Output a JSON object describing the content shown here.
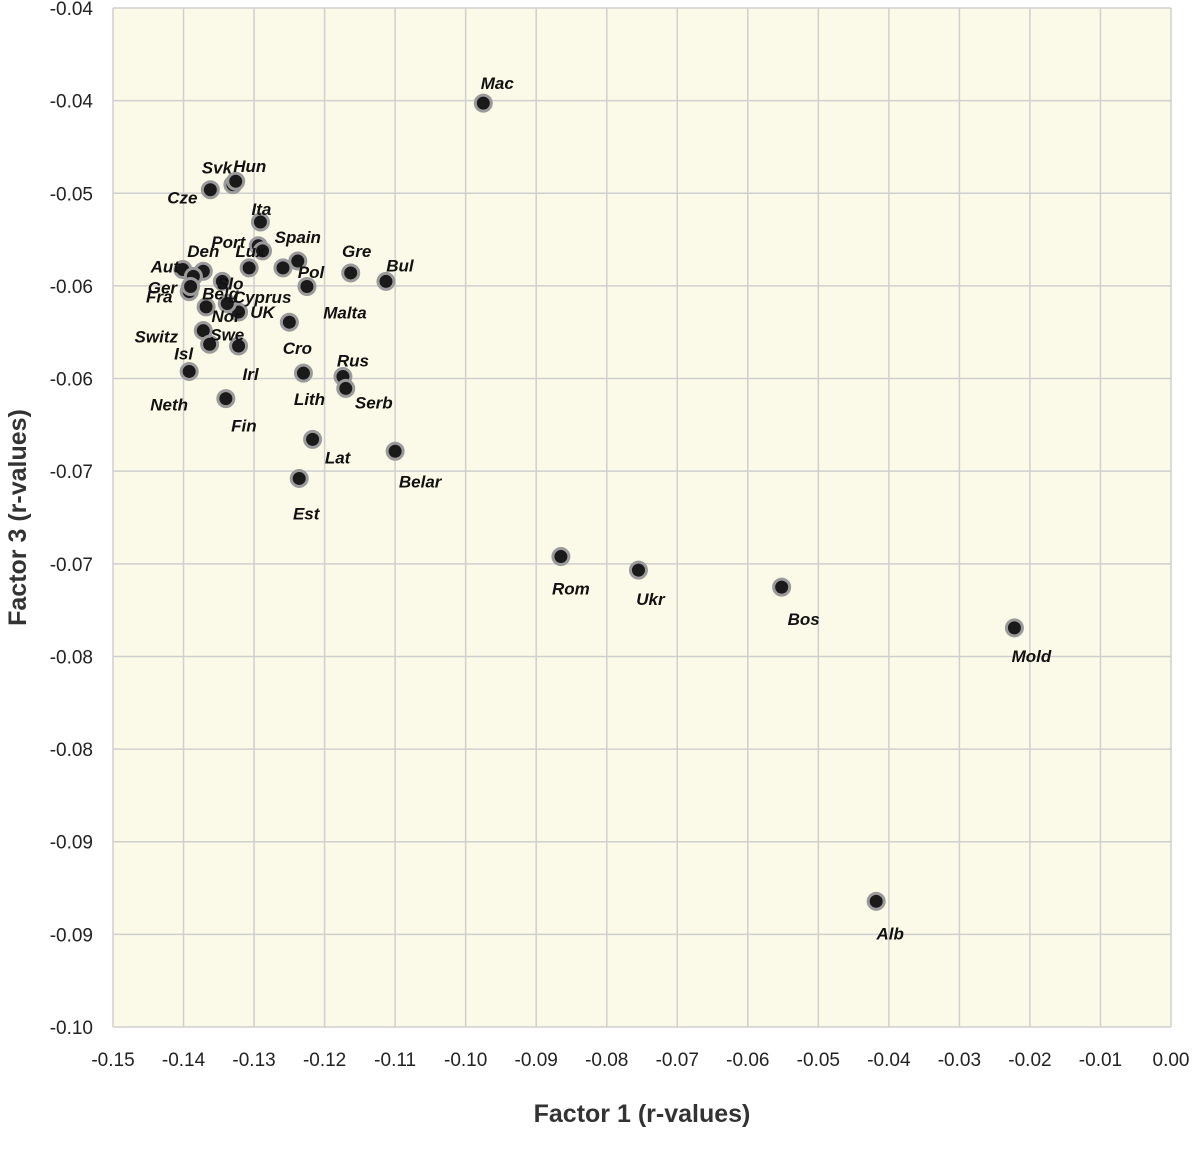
{
  "chart_data": {
    "type": "scatter",
    "title": "",
    "xlabel": "Factor 1 (r-values)",
    "ylabel": "Factor 3 (r-values)",
    "xlim": [
      -0.15,
      0.0
    ],
    "ylim": [
      -0.1,
      -0.04
    ],
    "x_ticks": [
      -0.15,
      -0.14,
      -0.13,
      -0.12,
      -0.11,
      -0.1,
      -0.09,
      -0.08,
      -0.07,
      -0.06,
      -0.05,
      -0.04,
      -0.03,
      -0.02,
      -0.01,
      0.0
    ],
    "x_tick_labels": [
      "-0.15",
      "-0.14",
      "-0.13",
      "-0.12",
      "-0.11",
      "-0.10",
      "-0.09",
      "-0.08",
      "-0.07",
      "-0.06",
      "-0.05",
      "-0.04",
      "-0.03",
      "-0.02",
      "-0.01",
      "0.00"
    ],
    "y_tick_labels": [
      "-0.04",
      "-0.04",
      "-0.05",
      "-0.06",
      "-0.06",
      "-0.07",
      "-0.07",
      "-0.08",
      "-0.08",
      "-0.09",
      "-0.09",
      "-0.10"
    ],
    "grid": true,
    "legend": "none",
    "colors": {
      "plot_bg": "#fbfae8",
      "grid": "#cfcfcf",
      "marker_fill": "#1a1a1a",
      "marker_stroke": "#9a9a9a"
    },
    "points": [
      {
        "label": "Mac",
        "x": -0.0975,
        "y": -0.0456
      },
      {
        "label": "Svk",
        "x": -0.133,
        "y": -0.0504
      },
      {
        "label": "Hun",
        "x": -0.1326,
        "y": -0.0502
      },
      {
        "label": "Cze",
        "x": -0.1362,
        "y": -0.0507
      },
      {
        "label": "Ita",
        "x": -0.1291,
        "y": -0.0526
      },
      {
        "label": "Port",
        "x": -0.1294,
        "y": -0.054
      },
      {
        "label": "Lux",
        "x": -0.1288,
        "y": -0.0543
      },
      {
        "label": "Spain",
        "x": -0.1238,
        "y": -0.0549
      },
      {
        "label": "Aut",
        "x": -0.1401,
        "y": -0.0554
      },
      {
        "label": "Den",
        "x": -0.1372,
        "y": -0.0555
      },
      {
        "label": "Slo",
        "x": -0.1345,
        "y": -0.0561
      },
      {
        "label": "Pol",
        "x": -0.1259,
        "y": -0.0553
      },
      {
        "label": "Gre",
        "x": -0.1163,
        "y": -0.0556
      },
      {
        "label": "Bul",
        "x": -0.1113,
        "y": -0.0561
      },
      {
        "label": "Ger",
        "x": -0.1386,
        "y": -0.0558
      },
      {
        "label": "Fra",
        "x": -0.1392,
        "y": -0.0567
      },
      {
        "label": "Belg",
        "x": -0.139,
        "y": -0.0564
      },
      {
        "label": "Nor",
        "x": -0.1368,
        "y": -0.0576
      },
      {
        "label": "Cyprus",
        "x": -0.1307,
        "y": -0.0553
      },
      {
        "label": "Malta",
        "x": -0.1225,
        "y": -0.0564
      },
      {
        "label": "UK",
        "x": -0.1322,
        "y": -0.0579
      },
      {
        "label": "Switz",
        "x": -0.1372,
        "y": -0.059
      },
      {
        "label": "Isl",
        "x": -0.1363,
        "y": -0.0598
      },
      {
        "label": "Cro",
        "x": -0.125,
        "y": -0.0585
      },
      {
        "label": "Irl",
        "x": -0.1322,
        "y": -0.0599
      },
      {
        "label": "Swe",
        "x": -0.1338,
        "y": -0.0574
      },
      {
        "label": "Neth",
        "x": -0.1392,
        "y": -0.0614
      },
      {
        "label": "Lith",
        "x": -0.123,
        "y": -0.0615
      },
      {
        "label": "Rus",
        "x": -0.1174,
        "y": -0.0617
      },
      {
        "label": "Serb",
        "x": -0.117,
        "y": -0.0624
      },
      {
        "label": "Fin",
        "x": -0.134,
        "y": -0.063
      },
      {
        "label": "Lat",
        "x": -0.1217,
        "y": -0.0654
      },
      {
        "label": "Belar",
        "x": -0.11,
        "y": -0.0661
      },
      {
        "label": "Est",
        "x": -0.1236,
        "y": -0.0677
      },
      {
        "label": "Rom",
        "x": -0.0865,
        "y": -0.0723
      },
      {
        "label": "Ukr",
        "x": -0.0755,
        "y": -0.0731
      },
      {
        "label": "Bos",
        "x": -0.0552,
        "y": -0.0741
      },
      {
        "label": "Mold",
        "x": -0.0222,
        "y": -0.0765
      },
      {
        "label": "Alb",
        "x": -0.0418,
        "y": -0.0926
      }
    ]
  }
}
